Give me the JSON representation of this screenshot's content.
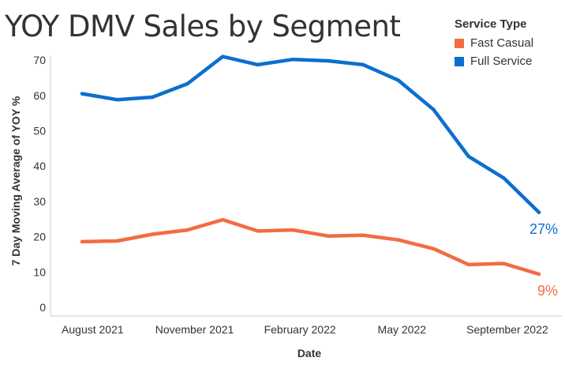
{
  "title": "YOY DMV Sales by Segment",
  "legend": {
    "title": "Service Type",
    "items": [
      {
        "label": "Fast Casual",
        "color": "#f26c43"
      },
      {
        "label": "Full Service",
        "color": "#0b6fce"
      }
    ]
  },
  "chart_data": {
    "type": "line",
    "title": "YOY DMV Sales by Segment",
    "xlabel": "Date",
    "ylabel": "7 Day Moving Average of YOY %",
    "ylim": [
      0,
      73
    ],
    "yticks": [
      0,
      10,
      20,
      30,
      40,
      50,
      60,
      70
    ],
    "x_points": 14,
    "xticks": [
      {
        "label": "August 2021",
        "index": 0.3
      },
      {
        "label": "November 2021",
        "index": 3.2
      },
      {
        "label": "February 2022",
        "index": 6.2
      },
      {
        "label": "May 2022",
        "index": 9.1
      },
      {
        "label": "September 2022",
        "index": 12.1
      }
    ],
    "series": [
      {
        "name": "Full Service",
        "color": "#0b6fce",
        "values": [
          60.5,
          58.8,
          59.5,
          63.3,
          71.0,
          68.7,
          70.2,
          69.8,
          68.7,
          64.3,
          56.0,
          42.7,
          36.6,
          26.9
        ],
        "end_label": "27%"
      },
      {
        "name": "Fast Casual",
        "color": "#f26c43",
        "values": [
          18.6,
          18.8,
          20.7,
          21.9,
          24.8,
          21.6,
          21.9,
          20.2,
          20.4,
          19.1,
          16.6,
          12.1,
          12.4,
          9.4
        ],
        "end_label": "9%"
      }
    ]
  }
}
